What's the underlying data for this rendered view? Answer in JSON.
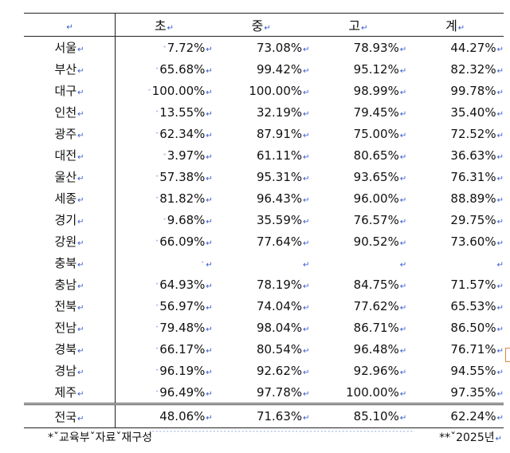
{
  "header": {
    "blank_mark": "↵",
    "col_elem": "초",
    "col_middle": "중",
    "col_high": "고",
    "col_total": "계"
  },
  "rows": [
    {
      "region": "서울",
      "elem": "7.72%",
      "middle": "73.08%",
      "high": "78.93%",
      "total": "44.27%"
    },
    {
      "region": "부산",
      "elem": "65.68%",
      "middle": "99.42%",
      "high": "95.12%",
      "total": "82.32%"
    },
    {
      "region": "대구",
      "elem": "100.00%",
      "middle": "100.00%",
      "high": "98.99%",
      "total": "99.78%"
    },
    {
      "region": "인천",
      "elem": "13.55%",
      "middle": "32.19%",
      "high": "79.45%",
      "total": "35.40%"
    },
    {
      "region": "광주",
      "elem": "62.34%",
      "middle": "87.91%",
      "high": "75.00%",
      "total": "72.52%"
    },
    {
      "region": "대전",
      "elem": "3.97%",
      "middle": "61.11%",
      "high": "80.65%",
      "total": "36.63%"
    },
    {
      "region": "울산",
      "elem": "57.38%",
      "middle": "95.31%",
      "high": "93.65%",
      "total": "76.31%"
    },
    {
      "region": "세종",
      "elem": "81.82%",
      "middle": "96.43%",
      "high": "96.00%",
      "total": "88.89%"
    },
    {
      "region": "경기",
      "elem": "9.68%",
      "middle": "35.59%",
      "high": "76.57%",
      "total": "29.75%"
    },
    {
      "region": "강원",
      "elem": "66.09%",
      "middle": "77.64%",
      "high": "90.52%",
      "total": "73.60%"
    },
    {
      "region": "충북",
      "elem": "",
      "middle": "",
      "high": "",
      "total": ""
    },
    {
      "region": "충남",
      "elem": "64.93%",
      "middle": "78.19%",
      "high": "84.75%",
      "total": "71.57%"
    },
    {
      "region": "전북",
      "elem": "56.97%",
      "middle": "74.04%",
      "high": "77.62%",
      "total": "65.53%"
    },
    {
      "region": "전남",
      "elem": "79.48%",
      "middle": "98.04%",
      "high": "86.71%",
      "total": "86.50%"
    },
    {
      "region": "경북",
      "elem": "66.17%",
      "middle": "80.54%",
      "high": "96.48%",
      "total": "76.71%"
    },
    {
      "region": "경남",
      "elem": "96.19%",
      "middle": "92.62%",
      "high": "92.96%",
      "total": "94.55%"
    },
    {
      "region": "제주",
      "elem": "96.49%",
      "middle": "97.78%",
      "high": "100.00%",
      "total": "97.35%"
    }
  ],
  "total_row": {
    "region": "전국",
    "elem": "48.06%",
    "middle": "71.63%",
    "high": "85.10%",
    "total": "62.24%"
  },
  "footer": {
    "source": "*ˇ교육부ˇ자료ˇ재구성",
    "year": "**ˇ2025년"
  },
  "colors": {
    "para_mark": "#3355cc",
    "space_mark": "#7a8fd6",
    "table_line": "#222222"
  }
}
